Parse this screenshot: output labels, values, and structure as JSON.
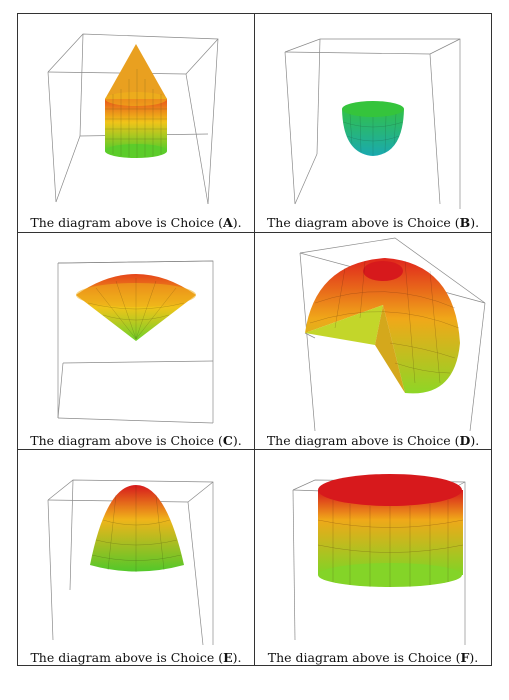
{
  "grid": {
    "cells": [
      {
        "caption_prefix": "The diagram above is Choice (",
        "letter": "A",
        "caption_suffix": ").",
        "shape": "cone-cylinder"
      },
      {
        "caption_prefix": "The diagram above is Choice (",
        "letter": "B",
        "caption_suffix": ").",
        "shape": "hemisphere"
      },
      {
        "caption_prefix": "The diagram above is Choice (",
        "letter": "C",
        "caption_suffix": ").",
        "shape": "double-cone"
      },
      {
        "caption_prefix": "The diagram above is Choice (",
        "letter": "D",
        "caption_suffix": ").",
        "shape": "sphere-wedge-cut"
      },
      {
        "caption_prefix": "The diagram above is Choice (",
        "letter": "E",
        "caption_suffix": ").",
        "shape": "paraboloid"
      },
      {
        "caption_prefix": "The diagram above is Choice (",
        "letter": "F",
        "caption_suffix": ").",
        "shape": "cylinder"
      }
    ]
  },
  "colors": {
    "top": "#d7191c",
    "mid": "#f0c419",
    "low": "#9ad923",
    "base": "#19b34d",
    "teal": "#1fb0a8"
  }
}
